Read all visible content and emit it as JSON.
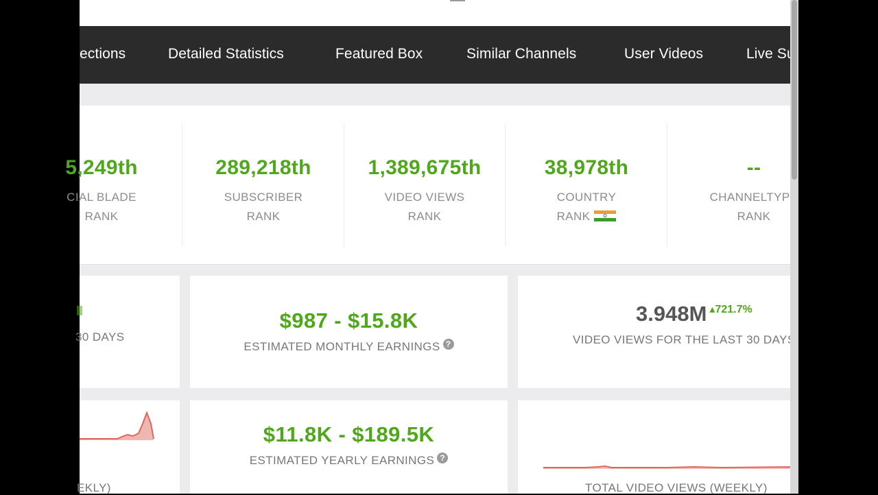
{
  "nav": {
    "items": [
      {
        "label": "ections"
      },
      {
        "label": "Detailed Statistics"
      },
      {
        "label": "Featured Box"
      },
      {
        "label": "Similar Channels"
      },
      {
        "label": "User Videos"
      },
      {
        "label": "Live Su"
      }
    ]
  },
  "ranks": [
    {
      "value": "5,249th",
      "label1": "CIAL BLADE",
      "label2": "RANK"
    },
    {
      "value": "289,218th",
      "label1": "SUBSCRIBER",
      "label2": "RANK"
    },
    {
      "value": "1,389,675th",
      "label1": "VIDEO VIEWS",
      "label2": "RANK"
    },
    {
      "value": "38,978th",
      "label1": "COUNTRY",
      "label2": "RANK"
    },
    {
      "value": "--",
      "label1": "CHANNELTYPE",
      "label2": "RANK"
    }
  ],
  "country_flag": "india-flag",
  "cards": {
    "left_partial_label": "30 DAYS",
    "monthly_earnings": {
      "value": "$987  -  $15.8K",
      "label": "ESTIMATED MONTHLY EARNINGS"
    },
    "yearly_earnings": {
      "value": "$11.8K  -  $189.5K",
      "label": "ESTIMATED YEARLY EARNINGS"
    },
    "video_views": {
      "value": "3.948M",
      "change": "721.7%",
      "label": "VIDEO VIEWS FOR THE LAST 30 DAYS"
    },
    "weekly_left_label": "EKLY)",
    "weekly_views_label": "TOTAL VIDEO VIEWS (WEEKLY)"
  },
  "help_icon_glyph": "?",
  "colors": {
    "accent_green": "#4fa81c",
    "nav_bg": "#2b2b2b",
    "chart_red": "#e0655a"
  }
}
